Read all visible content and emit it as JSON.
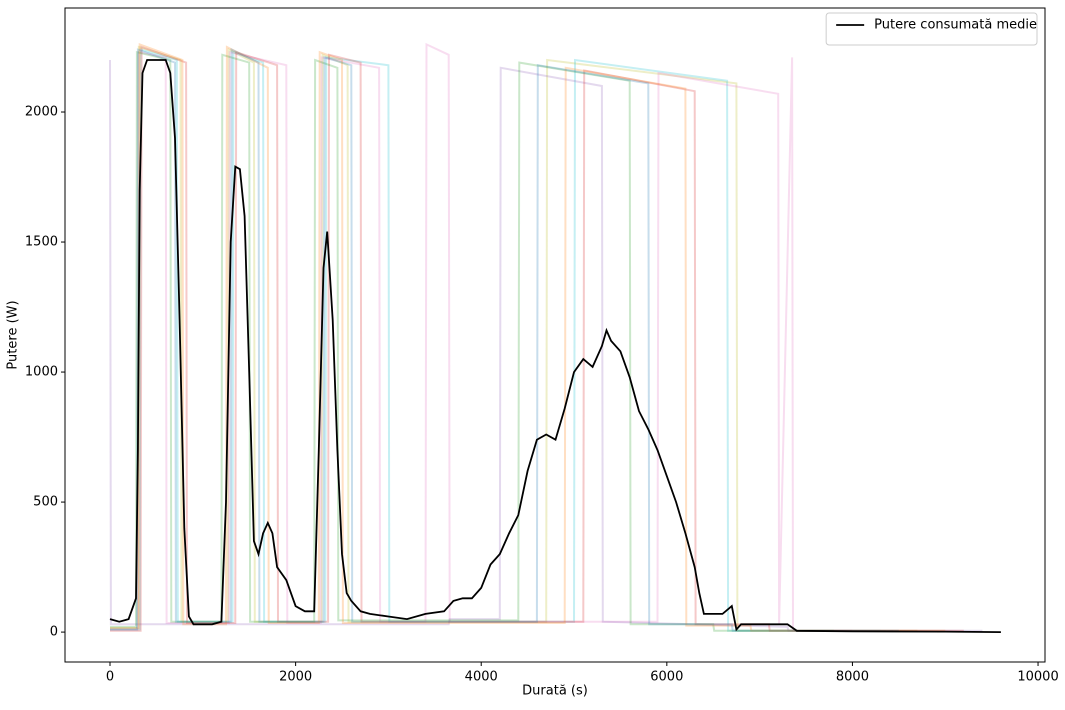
{
  "chart_data": {
    "type": "line",
    "x_label": "Durată (s)",
    "y_label": "Putere (W)",
    "xlim": [
      -485,
      10075
    ],
    "ylim": [
      -115,
      2400
    ],
    "xticks": [
      0,
      2000,
      4000,
      6000,
      8000,
      10000
    ],
    "yticks": [
      0,
      500,
      1000,
      1500,
      2000
    ],
    "legend": "upper right",
    "series": [
      {
        "name": "Putere consumată medie",
        "color": "#000000",
        "x": [
          0,
          100,
          200,
          280,
          300,
          320,
          350,
          400,
          500,
          600,
          650,
          700,
          750,
          800,
          850,
          900,
          1000,
          1100,
          1200,
          1250,
          1300,
          1350,
          1400,
          1450,
          1500,
          1550,
          1600,
          1650,
          1700,
          1750,
          1800,
          1900,
          2000,
          2100,
          2200,
          2250,
          2300,
          2340,
          2400,
          2450,
          2500,
          2550,
          2600,
          2700,
          2800,
          3000,
          3200,
          3400,
          3600,
          3700,
          3800,
          3900,
          4000,
          4100,
          4200,
          4300,
          4400,
          4500,
          4600,
          4700,
          4800,
          4900,
          5000,
          5100,
          5200,
          5300,
          5350,
          5400,
          5500,
          5600,
          5700,
          5800,
          5900,
          6000,
          6100,
          6200,
          6300,
          6350,
          6400,
          6600,
          6700,
          6750,
          6800,
          7000,
          7200,
          7300,
          7400,
          8000,
          9000,
          9600
        ],
        "values": [
          50,
          40,
          50,
          130,
          700,
          1700,
          2150,
          2200,
          2200,
          2200,
          2150,
          1900,
          1200,
          400,
          60,
          30,
          30,
          30,
          40,
          500,
          1500,
          1790,
          1780,
          1600,
          1000,
          350,
          300,
          380,
          420,
          380,
          250,
          200,
          100,
          80,
          80,
          700,
          1400,
          1540,
          1200,
          700,
          300,
          150,
          120,
          80,
          70,
          60,
          50,
          70,
          80,
          120,
          130,
          130,
          170,
          260,
          300,
          380,
          450,
          620,
          740,
          760,
          740,
          860,
          1000,
          1050,
          1020,
          1100,
          1160,
          1120,
          1080,
          980,
          850,
          780,
          700,
          600,
          500,
          380,
          250,
          150,
          70,
          70,
          100,
          10,
          30,
          30,
          30,
          30,
          5,
          3,
          2,
          0
        ]
      },
      {
        "color": "#1f77b4",
        "x": [
          0,
          290,
          300,
          700,
          710,
          1300,
          1310,
          1600,
          1610,
          2300,
          2310,
          2600,
          2610,
          4600,
          4610,
          5800,
          5810,
          6700,
          6710,
          8500
        ],
        "values": [
          10,
          10,
          2240,
          2190,
          40,
          40,
          2240,
          2190,
          40,
          40,
          2210,
          2180,
          40,
          40,
          2180,
          2110,
          30,
          30,
          5,
          5
        ]
      },
      {
        "color": "#ff7f0e",
        "x": [
          0,
          310,
          320,
          780,
          790,
          1250,
          1260,
          1700,
          1710,
          2250,
          2260,
          2500,
          2510,
          4900,
          4910,
          6200,
          6210,
          6900,
          6910,
          9000
        ],
        "values": [
          15,
          15,
          2260,
          2200,
          30,
          30,
          2250,
          2170,
          35,
          35,
          2230,
          2200,
          35,
          35,
          2170,
          2090,
          25,
          25,
          5,
          5
        ]
      },
      {
        "color": "#2ca02c",
        "x": [
          0,
          280,
          290,
          650,
          660,
          1200,
          1210,
          1500,
          1510,
          2200,
          2210,
          2450,
          2460,
          4400,
          4410,
          5600,
          5610,
          6500,
          6510,
          7800
        ],
        "values": [
          20,
          20,
          2230,
          2200,
          40,
          40,
          2220,
          2190,
          40,
          40,
          2200,
          2170,
          45,
          45,
          2190,
          2120,
          30,
          30,
          5,
          5
        ]
      },
      {
        "color": "#d62728",
        "x": [
          0,
          330,
          340,
          820,
          830,
          1350,
          1360,
          1800,
          1810,
          2350,
          2360,
          2700,
          2710,
          5100,
          5110,
          6300,
          6310,
          7100,
          7110,
          9200
        ],
        "values": [
          5,
          5,
          2250,
          2190,
          35,
          35,
          2230,
          2180,
          40,
          40,
          2220,
          2190,
          40,
          40,
          2160,
          2080,
          30,
          30,
          5,
          5
        ]
      },
      {
        "color": "#9467bd",
        "x": [
          0,
          10,
          3650,
          3660,
          4200,
          4210,
          5300,
          5310,
          7300,
          7310,
          9400
        ],
        "values": [
          2200,
          30,
          30,
          50,
          50,
          2170,
          2100,
          40,
          20,
          5,
          5
        ]
      },
      {
        "color": "#e377c2",
        "x": [
          0,
          300,
          310,
          600,
          610,
          1280,
          1290,
          1900,
          1910,
          2270,
          2280,
          2900,
          2910,
          3400,
          3410,
          3650,
          3660,
          5900,
          5910,
          7200,
          7210,
          7350,
          7360,
          8000
        ],
        "values": [
          10,
          10,
          2230,
          2210,
          35,
          35,
          2230,
          2180,
          35,
          35,
          2210,
          2170,
          40,
          40,
          2260,
          2220,
          40,
          40,
          2150,
          2070,
          30,
          2210,
          5,
          5
        ]
      },
      {
        "color": "#17becf",
        "x": [
          0,
          320,
          330,
          720,
          730,
          1320,
          1330,
          1650,
          1660,
          2320,
          2330,
          3000,
          3010,
          5000,
          5010,
          6650,
          6660,
          8300
        ],
        "values": [
          10,
          10,
          2240,
          2200,
          40,
          40,
          2230,
          2190,
          40,
          40,
          2210,
          2180,
          40,
          40,
          2200,
          2120,
          5,
          5
        ]
      },
      {
        "color": "#bcbd22",
        "x": [
          0,
          300,
          310,
          760,
          770,
          1270,
          1280,
          1550,
          1560,
          2280,
          2290,
          2560,
          2570,
          4700,
          4710,
          6750,
          6760,
          8700
        ],
        "values": [
          15,
          15,
          2250,
          2200,
          40,
          40,
          2240,
          2190,
          40,
          40,
          2220,
          2180,
          40,
          40,
          2200,
          2110,
          5,
          5
        ]
      }
    ]
  }
}
